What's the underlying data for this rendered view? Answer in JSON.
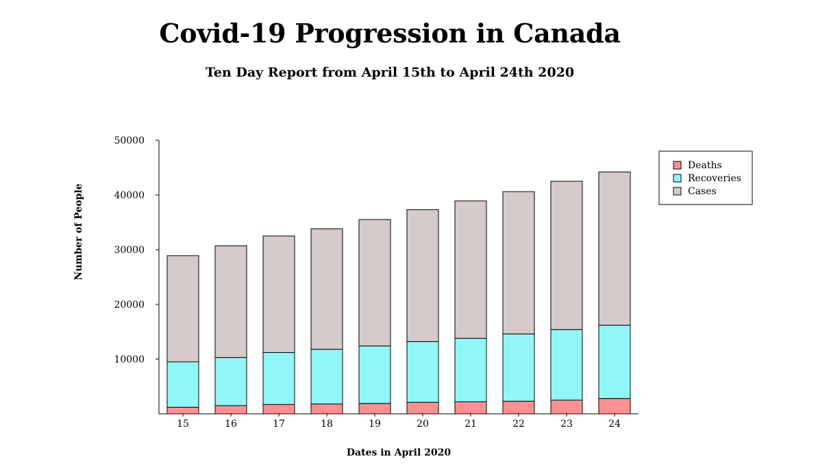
{
  "chart_data": {
    "type": "bar",
    "stacked": true,
    "title": "Covid-19 Progression in Canada",
    "subtitle": "Ten Day Report from April 15th to April 24th 2020",
    "xlabel": "Dates in April 2020",
    "ylabel": "Number of People",
    "categories": [
      "15",
      "16",
      "17",
      "18",
      "19",
      "20",
      "21",
      "22",
      "23",
      "24"
    ],
    "yticks": [
      10000,
      20000,
      30000,
      40000,
      50000
    ],
    "ylim": [
      0,
      50000
    ],
    "series": [
      {
        "name": "Deaths",
        "color": "#ff8f92",
        "values": [
          1200,
          1500,
          1700,
          1800,
          1900,
          2100,
          2200,
          2300,
          2500,
          2800
        ]
      },
      {
        "name": "Recoveries",
        "color": "#90f6f8",
        "values": [
          8300,
          8800,
          9500,
          10000,
          10500,
          11100,
          11600,
          12300,
          12900,
          13400
        ]
      },
      {
        "name": "Cases",
        "color": "#d5cbcb",
        "values": [
          19400,
          20400,
          21300,
          22000,
          23100,
          24100,
          25100,
          26000,
          27100,
          28000
        ]
      }
    ],
    "legend": {
      "position": "top-right",
      "order": [
        "Deaths",
        "Recoveries",
        "Cases"
      ]
    },
    "grid": false
  }
}
